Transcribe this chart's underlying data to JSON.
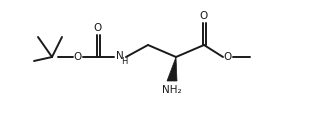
{
  "bg_color": "#ffffff",
  "line_color": "#1a1a1a",
  "lw": 1.4,
  "font_size": 7.5,
  "fig_w": 3.2,
  "fig_h": 1.2,
  "dpi": 100,
  "xlim": [
    0,
    320
  ],
  "ylim": [
    0,
    120
  ]
}
